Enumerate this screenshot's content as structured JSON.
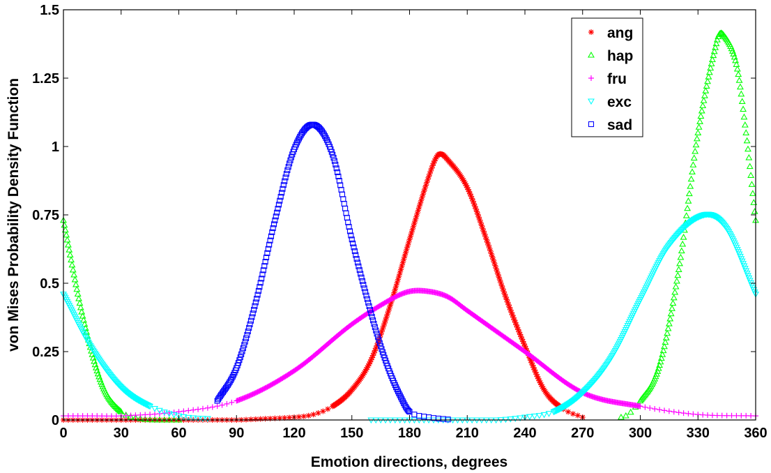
{
  "chart_data": {
    "type": "scatter",
    "title": "",
    "xlabel": "Emotion directions, degrees",
    "ylabel": "von Mises Probability Density Function",
    "xlim": [
      0,
      360
    ],
    "ylim": [
      0,
      1.5
    ],
    "xticks": [
      "0",
      "30",
      "60",
      "90",
      "120",
      "150",
      "180",
      "210",
      "240",
      "270",
      "300",
      "330",
      "360"
    ],
    "yticks": [
      "0",
      "0.25",
      "0.5",
      "0.75",
      "1",
      "1.25",
      "1.5"
    ],
    "grid": false,
    "legend_position": "top-right",
    "series": [
      {
        "name": "ang",
        "color": "#ff0000",
        "marker": "asterisk",
        "x": [
          0,
          30,
          60,
          90,
          100,
          120,
          130,
          140,
          150,
          160,
          170,
          180,
          190,
          195,
          200,
          210,
          220,
          230,
          240,
          250,
          260,
          270
        ],
        "y": [
          0,
          0,
          0,
          0,
          0.003,
          0.01,
          0.02,
          0.05,
          0.11,
          0.22,
          0.42,
          0.66,
          0.89,
          0.97,
          0.95,
          0.85,
          0.66,
          0.45,
          0.27,
          0.11,
          0.04,
          0.01
        ]
      },
      {
        "name": "hap",
        "color": "#00ff00",
        "marker": "triangle-up",
        "x": [
          0,
          10,
          20,
          30,
          40,
          50,
          60,
          290,
          300,
          310,
          320,
          330,
          340,
          343,
          350,
          355,
          360
        ],
        "y": [
          0.73,
          0.38,
          0.13,
          0.03,
          0.005,
          0,
          0,
          0.01,
          0.07,
          0.2,
          0.55,
          1.05,
          1.39,
          1.41,
          1.3,
          1.05,
          0.73
        ]
      },
      {
        "name": "fru",
        "color": "#ff00ff",
        "marker": "plus",
        "x": [
          0,
          15,
          30,
          60,
          90,
          120,
          150,
          170,
          180,
          190,
          200,
          210,
          240,
          270,
          300,
          330,
          360
        ],
        "y": [
          0.015,
          0.015,
          0.015,
          0.03,
          0.07,
          0.18,
          0.35,
          0.44,
          0.47,
          0.47,
          0.45,
          0.4,
          0.25,
          0.1,
          0.05,
          0.02,
          0.015
        ]
      },
      {
        "name": "exc",
        "color": "#00ffff",
        "marker": "triangle-down",
        "x": [
          0,
          15,
          30,
          45,
          60,
          75,
          160,
          200,
          210,
          225,
          240,
          255,
          270,
          285,
          300,
          315,
          333,
          345,
          360
        ],
        "y": [
          0.46,
          0.26,
          0.12,
          0.05,
          0.015,
          0.005,
          0,
          0,
          0,
          0,
          0.01,
          0.03,
          0.1,
          0.23,
          0.44,
          0.64,
          0.75,
          0.7,
          0.46
        ]
      },
      {
        "name": "sad",
        "color": "#0000ff",
        "marker": "square",
        "x": [
          80,
          90,
          100,
          110,
          120,
          130,
          140,
          150,
          160,
          165,
          170,
          175,
          180,
          190,
          200
        ],
        "y": [
          0.07,
          0.19,
          0.43,
          0.73,
          0.99,
          1.08,
          0.97,
          0.66,
          0.39,
          0.27,
          0.17,
          0.09,
          0.03,
          0.01,
          0.002
        ]
      }
    ]
  }
}
